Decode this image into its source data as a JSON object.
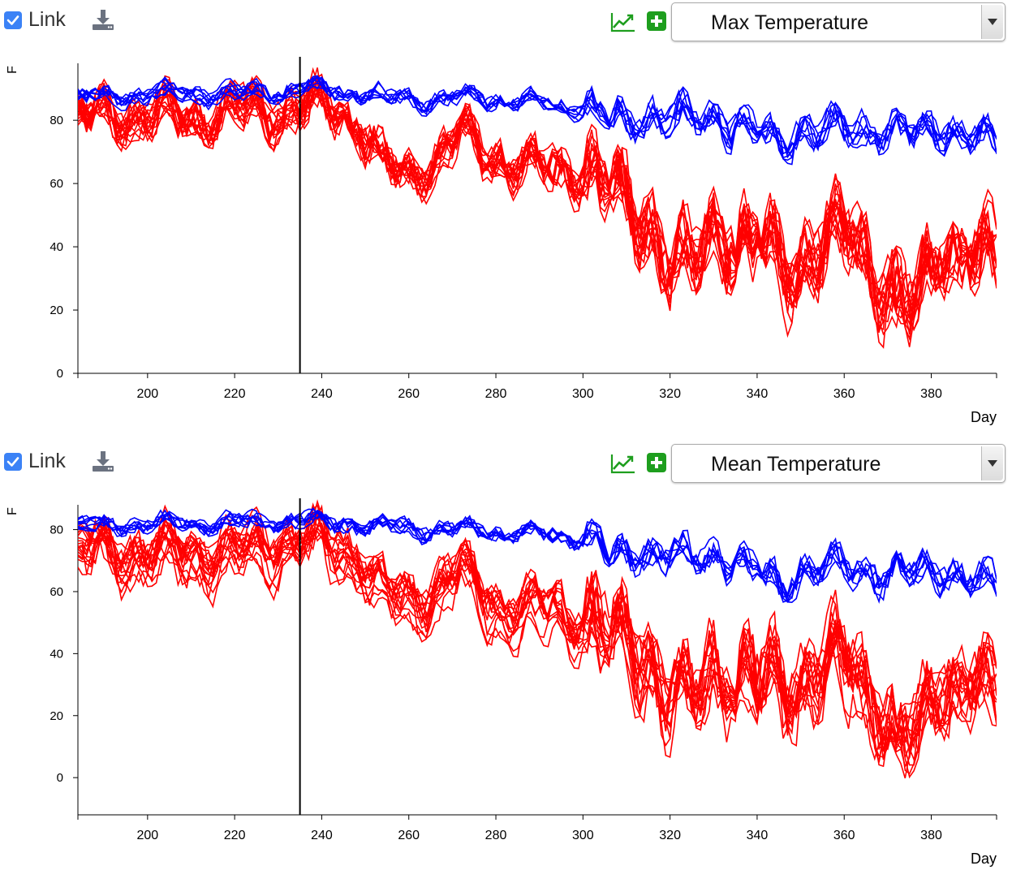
{
  "panels": [
    {
      "link": {
        "label": "Link",
        "checked": true
      },
      "download_icon": "download-icon",
      "trend_icon": "trend-chart-icon",
      "add_icon": "add-icon",
      "variable_select": {
        "value": "Max Temperature"
      }
    },
    {
      "link": {
        "label": "Link",
        "checked": true
      },
      "download_icon": "download-icon",
      "trend_icon": "trend-chart-icon",
      "add_icon": "add-icon",
      "variable_select": {
        "value": "Mean Temperature"
      }
    }
  ],
  "colors": {
    "blue_series": "#0000ff",
    "red_series": "#ff0000",
    "checkbox": "#3b82f6",
    "add_button": "#1e9e1e",
    "trend_icon": "#1e9e1e"
  },
  "chart_data": [
    {
      "type": "line",
      "ylabel": "F",
      "xlabel": "Day",
      "xlim": [
        184,
        395
      ],
      "ylim": [
        0,
        98
      ],
      "x_ticks": [
        200,
        220,
        240,
        260,
        280,
        300,
        320,
        340,
        360,
        380
      ],
      "y_ticks": [
        0,
        20,
        40,
        60,
        80
      ],
      "cursor_x": 235,
      "series_groups": [
        {
          "color": "#0000ff",
          "count": 8,
          "anchors_x": [
            184,
            200,
            220,
            236,
            250,
            262,
            275,
            286,
            300,
            305,
            310,
            320,
            330,
            340,
            345,
            350,
            360,
            370,
            380,
            395
          ],
          "anchors_y": [
            89,
            90,
            90,
            92,
            90,
            88,
            89,
            88,
            86,
            84,
            81,
            83,
            82,
            78,
            74,
            78,
            80,
            77,
            79,
            75
          ]
        },
        {
          "color": "#ff0000",
          "count": 16,
          "anchors_x": [
            184,
            190,
            200,
            210,
            220,
            230,
            240,
            248,
            253,
            258,
            265,
            272,
            280,
            288,
            295,
            300,
            305,
            310,
            315,
            320,
            325,
            330,
            335,
            340,
            345,
            350,
            355,
            362,
            367,
            372,
            377,
            382,
            388,
            395
          ],
          "anchors_y": [
            78,
            79,
            80,
            79,
            81,
            82,
            82,
            80,
            66,
            60,
            65,
            73,
            66,
            63,
            63,
            62,
            58,
            52,
            45,
            32,
            33,
            45,
            40,
            38,
            35,
            32,
            37,
            45,
            30,
            18,
            22,
            40,
            33,
            36
          ]
        }
      ]
    },
    {
      "type": "line",
      "ylabel": "F",
      "xlabel": "Day",
      "xlim": [
        184,
        395
      ],
      "ylim": [
        -12,
        88
      ],
      "x_ticks": [
        200,
        220,
        240,
        260,
        280,
        300,
        320,
        340,
        360,
        380
      ],
      "y_ticks": [
        0,
        20,
        40,
        60,
        80
      ],
      "cursor_x": 235,
      "series_groups": [
        {
          "color": "#0000ff",
          "count": 8,
          "anchors_x": [
            184,
            200,
            220,
            236,
            250,
            262,
            275,
            286,
            300,
            305,
            310,
            320,
            330,
            340,
            345,
            350,
            360,
            370,
            380,
            395
          ],
          "anchors_y": [
            82,
            83,
            83,
            84,
            82,
            81,
            81,
            80,
            78,
            76,
            72,
            74,
            72,
            68,
            63,
            67,
            70,
            66,
            68,
            64
          ]
        },
        {
          "color": "#ff0000",
          "count": 16,
          "anchors_x": [
            184,
            190,
            200,
            210,
            220,
            230,
            240,
            248,
            253,
            258,
            265,
            272,
            280,
            288,
            295,
            300,
            305,
            310,
            315,
            320,
            325,
            330,
            335,
            340,
            345,
            350,
            355,
            362,
            367,
            372,
            377,
            382,
            388,
            395
          ],
          "anchors_y": [
            70,
            72,
            70,
            71,
            70,
            74,
            74,
            72,
            58,
            55,
            58,
            64,
            55,
            52,
            52,
            50,
            48,
            45,
            36,
            25,
            25,
            35,
            32,
            32,
            30,
            28,
            32,
            38,
            22,
            10,
            14,
            30,
            28,
            26
          ]
        }
      ]
    }
  ]
}
